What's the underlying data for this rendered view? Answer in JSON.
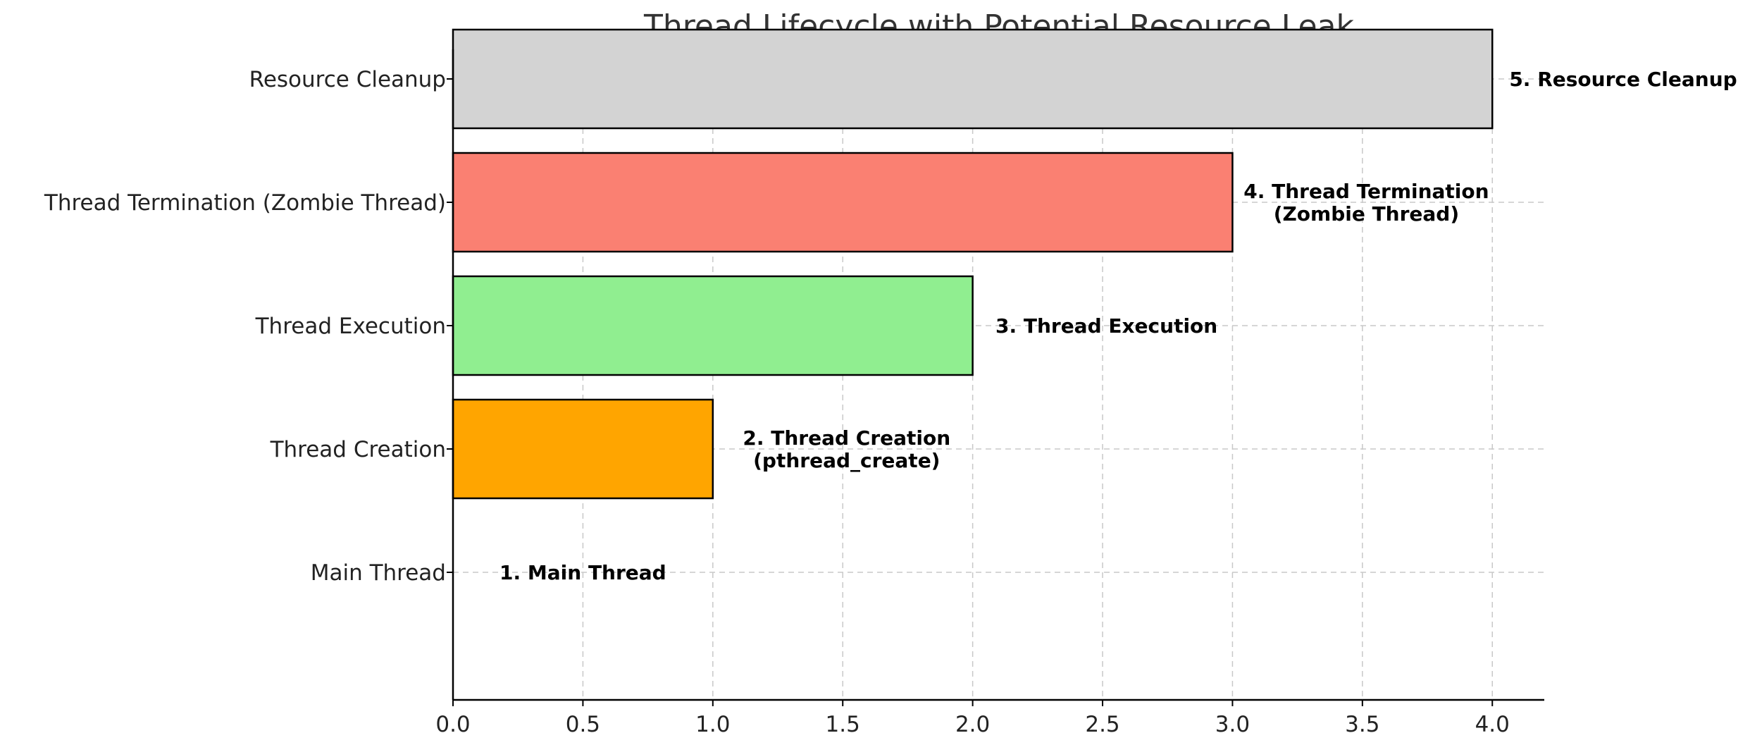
{
  "chart_data": {
    "type": "bar",
    "orientation": "horizontal",
    "title": "Thread Lifecycle with Potential Resource Leak",
    "xlabel": "",
    "ylabel": "",
    "xlim": [
      0,
      4.2
    ],
    "x_ticks": [
      0.0,
      0.5,
      1.0,
      1.5,
      2.0,
      2.5,
      3.0,
      3.5,
      4.0
    ],
    "x_tick_labels": [
      "0.0",
      "0.5",
      "1.0",
      "1.5",
      "2.0",
      "2.5",
      "3.0",
      "3.5",
      "4.0"
    ],
    "grid": true,
    "categories": [
      "Main Thread",
      "Thread Creation",
      "Thread Execution",
      "Thread Termination (Zombie Thread)",
      "Resource Cleanup"
    ],
    "values": [
      0,
      1,
      2,
      3,
      4
    ],
    "colors": [
      "#ffffff",
      "#ffa500",
      "#90ee90",
      "#fa8072",
      "#d3d3d3"
    ],
    "annotations": [
      [
        "1. Main Thread"
      ],
      [
        "2. Thread Creation",
        "(pthread_create)"
      ],
      [
        "3. Thread Execution"
      ],
      [
        "4. Thread Termination",
        "(Zombie Thread)"
      ],
      [
        "5. Resource Cleanup"
      ]
    ]
  }
}
